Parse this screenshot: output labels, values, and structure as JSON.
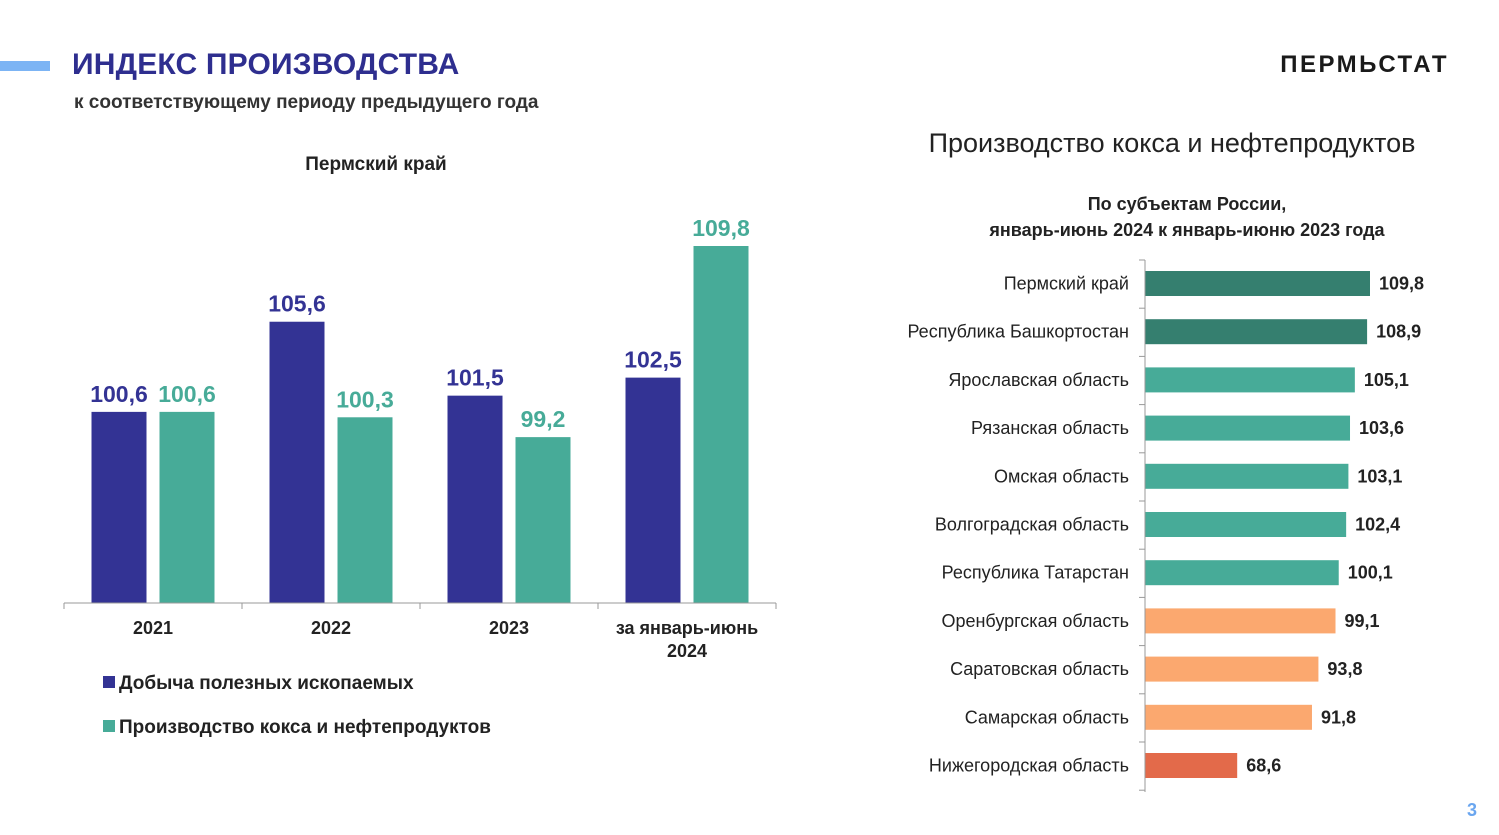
{
  "header": {
    "title": "ИНДЕКС ПРОИЗВОДСТВА",
    "subtitle": "к соответствующему периоду предыдущего года",
    "brand": "ПЕРМЬСТАТ",
    "page_number": "3"
  },
  "colors": {
    "title": "#2e2e8f",
    "accent": "#7cb4f4",
    "mining": "#333394",
    "coke": "#47ab98",
    "dark_green": "#357f6f",
    "orange": "#fba86f",
    "red": "#e36a4a"
  },
  "right_title": "Производство кокса и нефтепродуктов",
  "chart_data": [
    {
      "type": "bar",
      "title": "Пермский край",
      "categories": [
        "2021",
        "2022",
        "2023",
        "за январь-июнь 2024"
      ],
      "category_lines": [
        [
          "2021"
        ],
        [
          "2022"
        ],
        [
          "2023"
        ],
        [
          "за январь-июнь",
          "2024"
        ]
      ],
      "series": [
        {
          "name": "Добыча полезных ископаемых",
          "values": [
            100.6,
            105.6,
            101.5,
            102.5
          ],
          "labels": [
            "100,6",
            "105,6",
            "101,5",
            "102,5"
          ],
          "color": "#333394"
        },
        {
          "name": "Производство кокса и нефтепродуктов",
          "values": [
            100.6,
            100.3,
            99.2,
            109.8
          ],
          "labels": [
            "100,6",
            "100,3",
            "99,2",
            "109,8"
          ],
          "color": "#47ab98"
        }
      ],
      "ylim": [
        90,
        112
      ],
      "grid": false,
      "legend": "bottom-left"
    },
    {
      "type": "bar",
      "orientation": "horizontal",
      "title_lines": [
        "По субъектам России,",
        "январь-июнь 2024 к январь-июню 2023 года"
      ],
      "categories": [
        "Пермский край",
        "Республика Башкортостан",
        "Ярославская область",
        "Рязанская область",
        "Омская область",
        "Волгоградская область",
        "Республика Татарстан",
        "Оренбургская область",
        "Саратовская область",
        "Самарская область",
        "Нижегородская область"
      ],
      "values": [
        109.8,
        108.9,
        105.1,
        103.6,
        103.1,
        102.4,
        100.1,
        99.1,
        93.8,
        91.8,
        68.6
      ],
      "labels": [
        "109,8",
        "108,9",
        "105,1",
        "103,6",
        "103,1",
        "102,4",
        "100,1",
        "99,1",
        "93,8",
        "91,8",
        "68,6"
      ],
      "colors": [
        "#357f6f",
        "#357f6f",
        "#47ab98",
        "#47ab98",
        "#47ab98",
        "#47ab98",
        "#47ab98",
        "#fba86f",
        "#fba86f",
        "#fba86f",
        "#e36a4a"
      ],
      "xlim": [
        40,
        110
      ],
      "grid": false
    }
  ]
}
